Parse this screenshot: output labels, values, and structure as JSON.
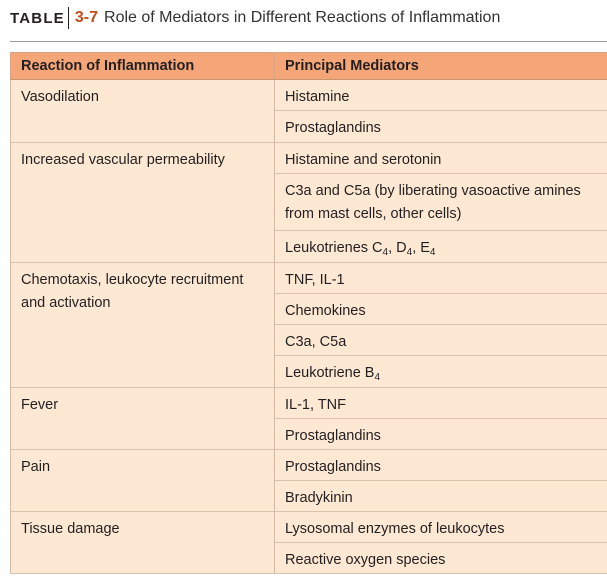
{
  "caption": {
    "label": "TABLE",
    "number": "3-7",
    "title": "Role of Mediators in Different Reactions of Inflammation"
  },
  "headers": {
    "reaction": "Reaction of Inflammation",
    "mediators": "Principal Mediators"
  },
  "reactions": [
    "Vasodilation",
    "Increased vascular permeability",
    "Chemotaxis, leukocyte recruitment and activation",
    "Fever",
    "Pain",
    "Tissue damage"
  ],
  "mediators": {
    "histamine": "Histamine",
    "prostaglandins": "Prostaglandins",
    "histamine_serotonin": "Histamine and serotonin",
    "c3a_c5a_line1": "C3a and C5a (by liberating vasoactive amines",
    "c3a_c5a_line2": "from mast cells, other cells)",
    "leukotrienes_prefix": "Leukotrienes C",
    "leukotrienes_sub1": "4",
    "leukotrienes_mid1": ", D",
    "leukotrienes_sub2": "4",
    "leukotrienes_mid2": ", E",
    "leukotrienes_sub3": "4",
    "tnf_il1": "TNF, IL-1",
    "chemokines": "Chemokines",
    "c3a_c5a": "C3a, C5a",
    "leukotriene_b_prefix": "Leukotriene B",
    "leukotriene_b_sub": "4",
    "il1_tnf": "IL-1, TNF",
    "prostaglandins_fever": "Prostaglandins",
    "prostaglandins_pain": "Prostaglandins",
    "bradykinin": "Bradykinin",
    "lysosomal": "Lysosomal enzymes of leukocytes",
    "ros": "Reactive oxygen species"
  }
}
